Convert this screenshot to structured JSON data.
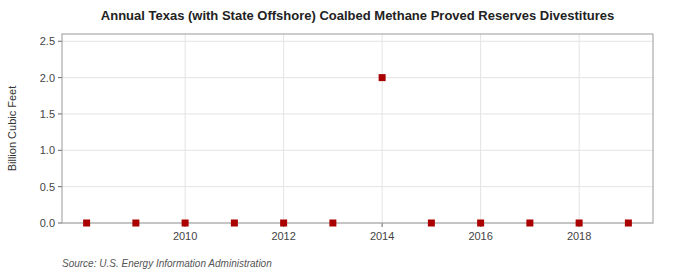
{
  "chart_data": {
    "type": "scatter",
    "title": "Annual Texas (with State Offshore) Coalbed Methane Proved Reserves Divestitures",
    "ylabel": "Billion Cubic Feet",
    "source": "Source: U.S. Energy Information Administration",
    "x": [
      2008,
      2009,
      2010,
      2011,
      2012,
      2013,
      2014,
      2015,
      2016,
      2017,
      2018,
      2019
    ],
    "values": [
      0.0,
      0.0,
      0.0,
      0.0,
      0.0,
      0.0,
      2.0,
      0.0,
      0.0,
      0.0,
      0.0,
      0.0
    ],
    "xlim": [
      2007.5,
      2019.5
    ],
    "xticks": [
      2010,
      2012,
      2014,
      2016,
      2018
    ],
    "ylim": [
      0.0,
      2.6
    ],
    "yticks": [
      {
        "value": 0.0,
        "label": "0.0"
      },
      0.5,
      {
        "value": 1.0,
        "label": "1.0"
      },
      1.5,
      {
        "value": 2.0,
        "label": "2.0"
      },
      2.5
    ],
    "grid": true,
    "marker": "square",
    "color": "#aa0000"
  }
}
